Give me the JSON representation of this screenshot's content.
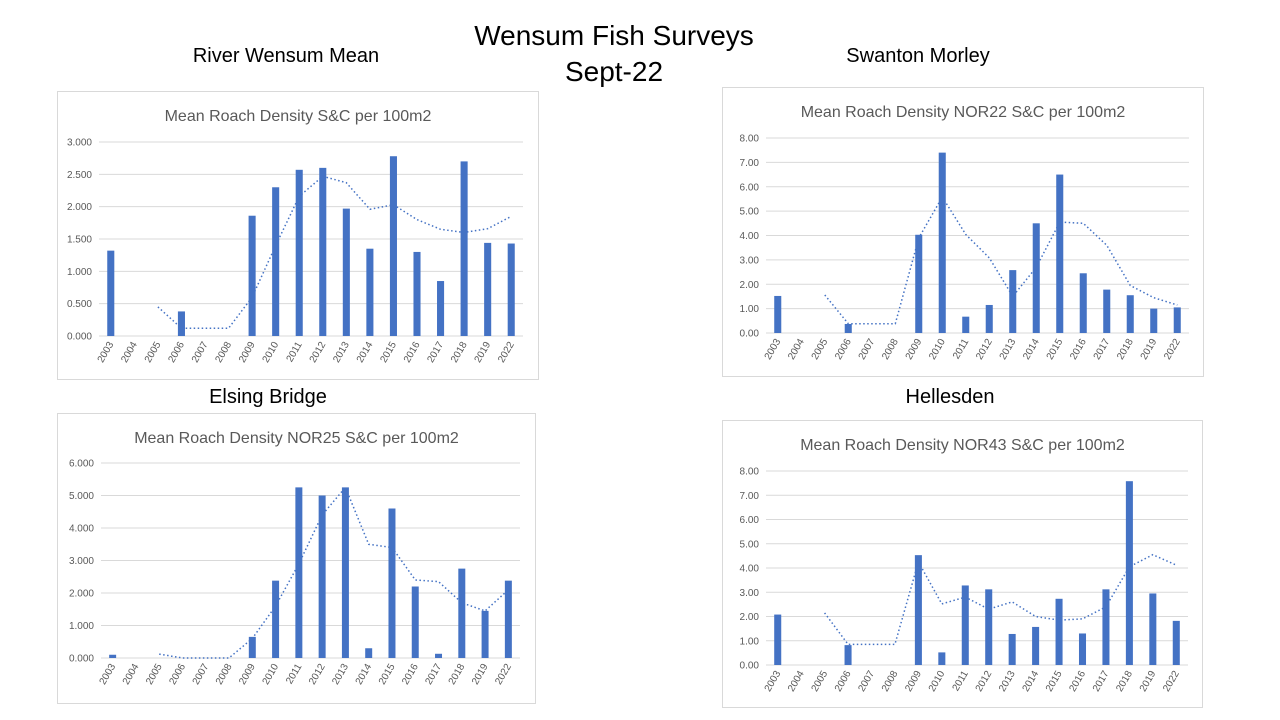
{
  "page": {
    "title_line1": "Wensum Fish Surveys",
    "title_line2": "Sept-22"
  },
  "sections": [
    {
      "label": "River Wensum Mean"
    },
    {
      "label": "Swanton Morley"
    },
    {
      "label": "Elsing Bridge"
    },
    {
      "label": "Hellesden"
    }
  ],
  "chart_data": [
    {
      "type": "bar",
      "title": "Mean Roach Density S&C per 100m2",
      "categories": [
        "2003",
        "2004",
        "2005",
        "2006",
        "2007",
        "2008",
        "2009",
        "2010",
        "2011",
        "2012",
        "2013",
        "2014",
        "2015",
        "2016",
        "2017",
        "2018",
        "2019",
        "2022"
      ],
      "values": [
        1.32,
        0,
        0,
        0.38,
        0,
        0,
        1.86,
        2.3,
        2.57,
        2.6,
        1.97,
        1.35,
        2.78,
        1.3,
        0.85,
        2.7,
        1.44,
        1.43
      ],
      "trendline": {
        "type": "moving_average",
        "period": 2,
        "style": "dotted",
        "values": [
          null,
          null,
          0.45,
          0.12,
          0.12,
          0.12,
          0.6,
          1.4,
          2.16,
          2.47,
          2.37,
          1.96,
          2.03,
          1.8,
          1.65,
          1.6,
          1.66,
          1.85
        ]
      },
      "ylim": [
        0,
        3
      ],
      "yticks": [
        0,
        0.5,
        1,
        1.5,
        2,
        2.5,
        3
      ],
      "ytick_labels": [
        "0.000",
        "0.500",
        "1.000",
        "1.500",
        "2.000",
        "2.500",
        "3.000"
      ],
      "xlabel": "",
      "ylabel": "",
      "grid": true
    },
    {
      "type": "bar",
      "title": "Mean Roach Density NOR22 S&C per 100m2",
      "categories": [
        "2003",
        "2004",
        "2005",
        "2006",
        "2007",
        "2008",
        "2009",
        "2010",
        "2011",
        "2012",
        "2013",
        "2014",
        "2015",
        "2016",
        "2017",
        "2018",
        "2019",
        "2022"
      ],
      "values": [
        1.52,
        0,
        0,
        0.37,
        0,
        0,
        4.03,
        7.4,
        0.67,
        1.15,
        2.58,
        4.5,
        6.5,
        2.45,
        1.78,
        1.55,
        1.0,
        1.05
      ],
      "trendline": {
        "type": "moving_average",
        "period": 2,
        "style": "dotted",
        "values": [
          null,
          null,
          1.56,
          0.38,
          0.38,
          0.38,
          3.9,
          5.58,
          4.04,
          3.08,
          1.5,
          2.7,
          4.55,
          4.5,
          3.6,
          1.95,
          1.45,
          1.15
        ]
      },
      "ylim": [
        0,
        8
      ],
      "yticks": [
        0,
        1,
        2,
        3,
        4,
        5,
        6,
        7,
        8
      ],
      "ytick_labels": [
        "0.00",
        "1.00",
        "2.00",
        "3.00",
        "4.00",
        "5.00",
        "6.00",
        "7.00",
        "8.00"
      ],
      "xlabel": "",
      "ylabel": "",
      "grid": true
    },
    {
      "type": "bar",
      "title": "Mean Roach Density NOR25 S&C per 100m2",
      "categories": [
        "2003",
        "2004",
        "2005",
        "2006",
        "2007",
        "2008",
        "2009",
        "2010",
        "2011",
        "2012",
        "2013",
        "2014",
        "2015",
        "2016",
        "2017",
        "2018",
        "2019",
        "2022"
      ],
      "values": [
        0.1,
        0,
        0,
        0,
        0,
        0,
        0.65,
        2.38,
        5.25,
        5.0,
        5.25,
        0.3,
        4.6,
        2.2,
        0.13,
        2.75,
        1.45,
        2.38
      ],
      "trendline": {
        "type": "moving_average",
        "period": 2,
        "style": "dotted",
        "values": [
          null,
          null,
          0.12,
          0.0,
          0.0,
          0.0,
          0.6,
          1.6,
          2.9,
          4.4,
          5.25,
          3.5,
          3.4,
          2.4,
          2.35,
          1.7,
          1.45,
          2.1
        ]
      },
      "ylim": [
        0,
        6
      ],
      "yticks": [
        0,
        1,
        2,
        3,
        4,
        5,
        6
      ],
      "ytick_labels": [
        "0.000",
        "1.000",
        "2.000",
        "3.000",
        "4.000",
        "5.000",
        "6.000"
      ],
      "xlabel": "",
      "ylabel": "",
      "grid": true
    },
    {
      "type": "bar",
      "title": "Mean Roach Density NOR43 S&C per 100m2",
      "categories": [
        "2003",
        "2004",
        "2005",
        "2006",
        "2007",
        "2008",
        "2009",
        "2010",
        "2011",
        "2012",
        "2013",
        "2014",
        "2015",
        "2016",
        "2017",
        "2018",
        "2019",
        "2022"
      ],
      "values": [
        2.08,
        0,
        0,
        0.82,
        0,
        0,
        4.53,
        0.52,
        3.28,
        3.12,
        1.28,
        1.57,
        2.73,
        1.3,
        3.12,
        7.58,
        2.95,
        1.82
      ],
      "trendline": {
        "type": "moving_average",
        "period": 2,
        "style": "dotted",
        "values": [
          null,
          null,
          2.15,
          0.85,
          0.85,
          0.85,
          4.25,
          2.52,
          2.8,
          2.3,
          2.6,
          2.0,
          1.85,
          1.9,
          2.4,
          4.05,
          4.55,
          4.12
        ]
      },
      "ylim": [
        0,
        8
      ],
      "yticks": [
        0,
        1,
        2,
        3,
        4,
        5,
        6,
        7,
        8
      ],
      "ytick_labels": [
        "0.00",
        "1.00",
        "2.00",
        "3.00",
        "4.00",
        "5.00",
        "6.00",
        "7.00",
        "8.00"
      ],
      "xlabel": "",
      "ylabel": "",
      "grid": true
    }
  ],
  "colors": {
    "bar": "#4472c4",
    "grid": "#d9d9d9",
    "text": "#595959",
    "border": "#d9d9d9"
  }
}
